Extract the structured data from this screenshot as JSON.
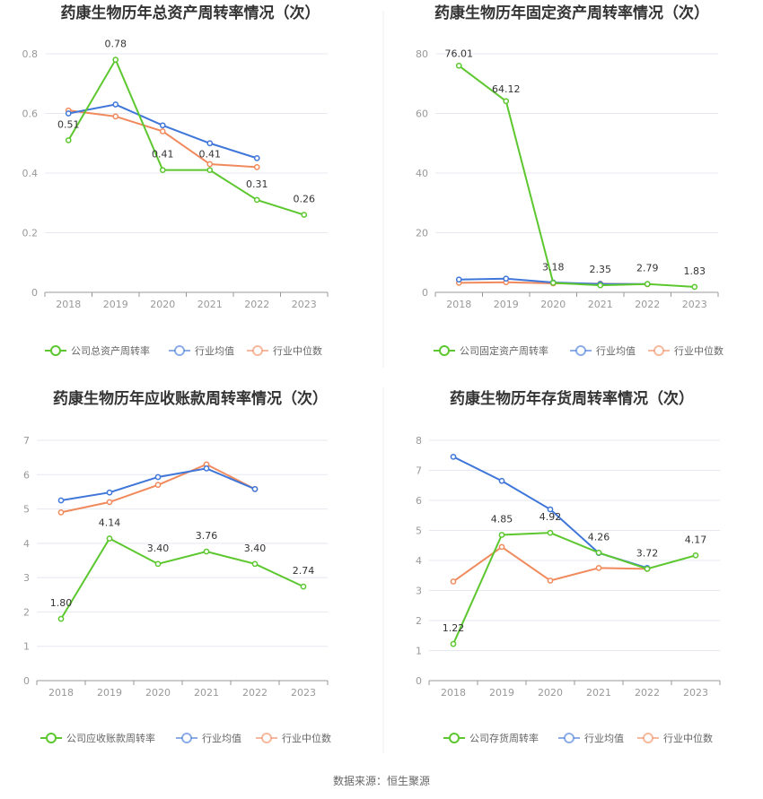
{
  "source": "数据来源：恒生聚源",
  "colors": {
    "company": "#5cc72e",
    "avg": "#3f76d9",
    "median": "#f08a5d",
    "grid": "#e5e8ef",
    "axis": "#999999"
  },
  "chart_data": [
    {
      "type": "line",
      "title": "药康生物历年总资产周转率情况（次）",
      "categories": [
        "2018",
        "2019",
        "2020",
        "2021",
        "2022",
        "2023"
      ],
      "ylim": [
        0,
        0.8
      ],
      "yticks": [
        "0",
        "0.2",
        "0.4",
        "0.6",
        "0.8"
      ],
      "series": [
        {
          "name": "公司总资产周转率",
          "role": "company",
          "values": [
            0.51,
            0.78,
            0.41,
            0.41,
            0.31,
            0.26
          ],
          "labels": [
            "0.51",
            "0.78",
            "0.41",
            "0.41",
            "0.31",
            "0.26"
          ]
        },
        {
          "name": "行业均值",
          "role": "avg",
          "values": [
            0.6,
            0.63,
            0.56,
            0.5,
            0.45,
            null
          ]
        },
        {
          "name": "行业中位数",
          "role": "median",
          "values": [
            0.61,
            0.59,
            0.54,
            0.43,
            0.42,
            null
          ]
        }
      ]
    },
    {
      "type": "line",
      "title": "药康生物历年固定资产周转率情况（次）",
      "categories": [
        "2018",
        "2019",
        "2020",
        "2021",
        "2022",
        "2023"
      ],
      "ylim": [
        0,
        80
      ],
      "yticks": [
        "0",
        "20",
        "40",
        "60",
        "80"
      ],
      "series": [
        {
          "name": "公司固定资产周转率",
          "role": "company",
          "values": [
            76.01,
            64.12,
            3.18,
            2.35,
            2.79,
            1.83
          ],
          "labels": [
            "76.01",
            "64.12",
            "3.18",
            "2.35",
            "2.79",
            "1.83"
          ]
        },
        {
          "name": "行业均值",
          "role": "avg",
          "values": [
            4.3,
            4.6,
            3.3,
            2.8,
            2.8,
            null
          ]
        },
        {
          "name": "行业中位数",
          "role": "median",
          "values": [
            3.2,
            3.4,
            3.0,
            2.9,
            2.7,
            null
          ]
        }
      ]
    },
    {
      "type": "line",
      "title": "药康生物历年应收账款周转率情况（次）",
      "categories": [
        "2018",
        "2019",
        "2020",
        "2021",
        "2022",
        "2023"
      ],
      "ylim": [
        0,
        7
      ],
      "yticks": [
        "0",
        "1",
        "2",
        "3",
        "4",
        "5",
        "6",
        "7"
      ],
      "series": [
        {
          "name": "公司应收账款周转率",
          "role": "company",
          "values": [
            1.8,
            4.14,
            3.4,
            3.76,
            3.4,
            2.74
          ],
          "labels": [
            "1.80",
            "4.14",
            "3.40",
            "3.76",
            "3.40",
            "2.74"
          ]
        },
        {
          "name": "行业均值",
          "role": "avg",
          "values": [
            5.25,
            5.48,
            5.93,
            6.18,
            5.58,
            null
          ]
        },
        {
          "name": "行业中位数",
          "role": "median",
          "values": [
            4.9,
            5.2,
            5.7,
            6.3,
            5.58,
            null
          ]
        }
      ]
    },
    {
      "type": "line",
      "title": "药康生物历年存货周转率情况（次）",
      "categories": [
        "2018",
        "2019",
        "2020",
        "2021",
        "2022",
        "2023"
      ],
      "ylim": [
        0,
        8
      ],
      "yticks": [
        "0",
        "1",
        "2",
        "3",
        "4",
        "5",
        "6",
        "7",
        "8"
      ],
      "series": [
        {
          "name": "公司存货周转率",
          "role": "company",
          "values": [
            1.22,
            4.85,
            4.92,
            4.26,
            3.72,
            4.17
          ],
          "labels": [
            "1.22",
            "4.85",
            "4.92",
            "4.26",
            "3.72",
            "4.17"
          ]
        },
        {
          "name": "行业均值",
          "role": "avg",
          "values": [
            7.45,
            6.65,
            5.7,
            4.25,
            3.75,
            null
          ]
        },
        {
          "name": "行业中位数",
          "role": "median",
          "values": [
            3.3,
            4.45,
            3.33,
            3.75,
            3.72,
            null
          ]
        }
      ]
    }
  ]
}
